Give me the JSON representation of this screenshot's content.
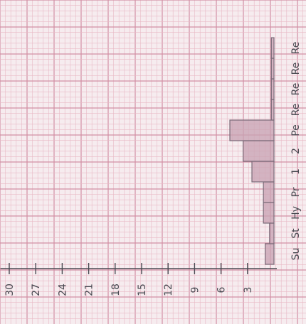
{
  "chart_data": {
    "type": "bar",
    "orientation": "rotated",
    "value_axis": {
      "ticks": [
        "3",
        "6",
        "9",
        "12",
        "15",
        "18",
        "21",
        "24",
        "27",
        "30"
      ],
      "range": [
        0,
        31
      ]
    },
    "categories": [
      "Su",
      "St",
      "Hy",
      "Pr",
      "1",
      "2",
      "Pe",
      "Re",
      "Re",
      "Re",
      "Re"
    ],
    "values": [
      1,
      0.5,
      1.2,
      1.2,
      2.5,
      3.5,
      5,
      0.3,
      0.3,
      0.3,
      0.3
    ],
    "title": "",
    "xlabel": "",
    "ylabel": "",
    "grid": true,
    "colors": {
      "paper": "#f6ecef",
      "grid_fine": "#e8b9c6",
      "grid_major": "#d28ea3",
      "bar_fill": "#c9a3b4",
      "bar_stroke": "#7a6a78",
      "ink": "#4a4a52"
    }
  }
}
